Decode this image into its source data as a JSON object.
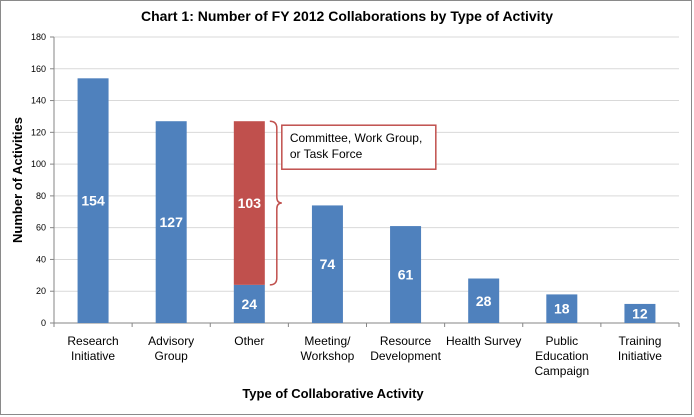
{
  "chart_data": {
    "type": "bar",
    "title": "Chart 1: Number of FY 2012 Collaborations  by Type of Activity",
    "xlabel": "Type of Collaborative  Activity",
    "ylabel": "Number of Activities",
    "ylim": [
      0,
      180
    ],
    "yticks": [
      "0",
      "20",
      "40",
      "60",
      "80",
      "100",
      "120",
      "140",
      "160",
      "180"
    ],
    "grid": true,
    "categories": [
      [
        "Research",
        "Initiative"
      ],
      [
        "Advisory",
        "Group"
      ],
      [
        "Other"
      ],
      [
        "Meeting/",
        "Workshop"
      ],
      [
        "Resource",
        "Development"
      ],
      [
        "Health Survey"
      ],
      [
        "Public",
        "Education",
        "Campaign"
      ],
      [
        "Training",
        "Initiative"
      ]
    ],
    "bars": [
      {
        "segments": [
          {
            "value": 154,
            "label": "154",
            "color": "#4f81bd"
          }
        ]
      },
      {
        "segments": [
          {
            "value": 127,
            "label": "127",
            "color": "#4f81bd"
          }
        ]
      },
      {
        "segments": [
          {
            "value": 24,
            "label": "24",
            "color": "#4f81bd"
          },
          {
            "value": 103,
            "label": "103",
            "color": "#c0504d"
          }
        ]
      },
      {
        "segments": [
          {
            "value": 74,
            "label": "74",
            "color": "#4f81bd"
          }
        ]
      },
      {
        "segments": [
          {
            "value": 61,
            "label": "61",
            "color": "#4f81bd"
          }
        ]
      },
      {
        "segments": [
          {
            "value": 28,
            "label": "28",
            "color": "#4f81bd"
          }
        ]
      },
      {
        "segments": [
          {
            "value": 18,
            "label": "18",
            "color": "#4f81bd"
          }
        ]
      },
      {
        "segments": [
          {
            "value": 12,
            "label": "12",
            "color": "#4f81bd"
          }
        ]
      }
    ],
    "annotation": {
      "lines": [
        "Committee, Work Group,",
        "or Task Force"
      ],
      "color": "#c0504d",
      "target_category": 2
    }
  }
}
